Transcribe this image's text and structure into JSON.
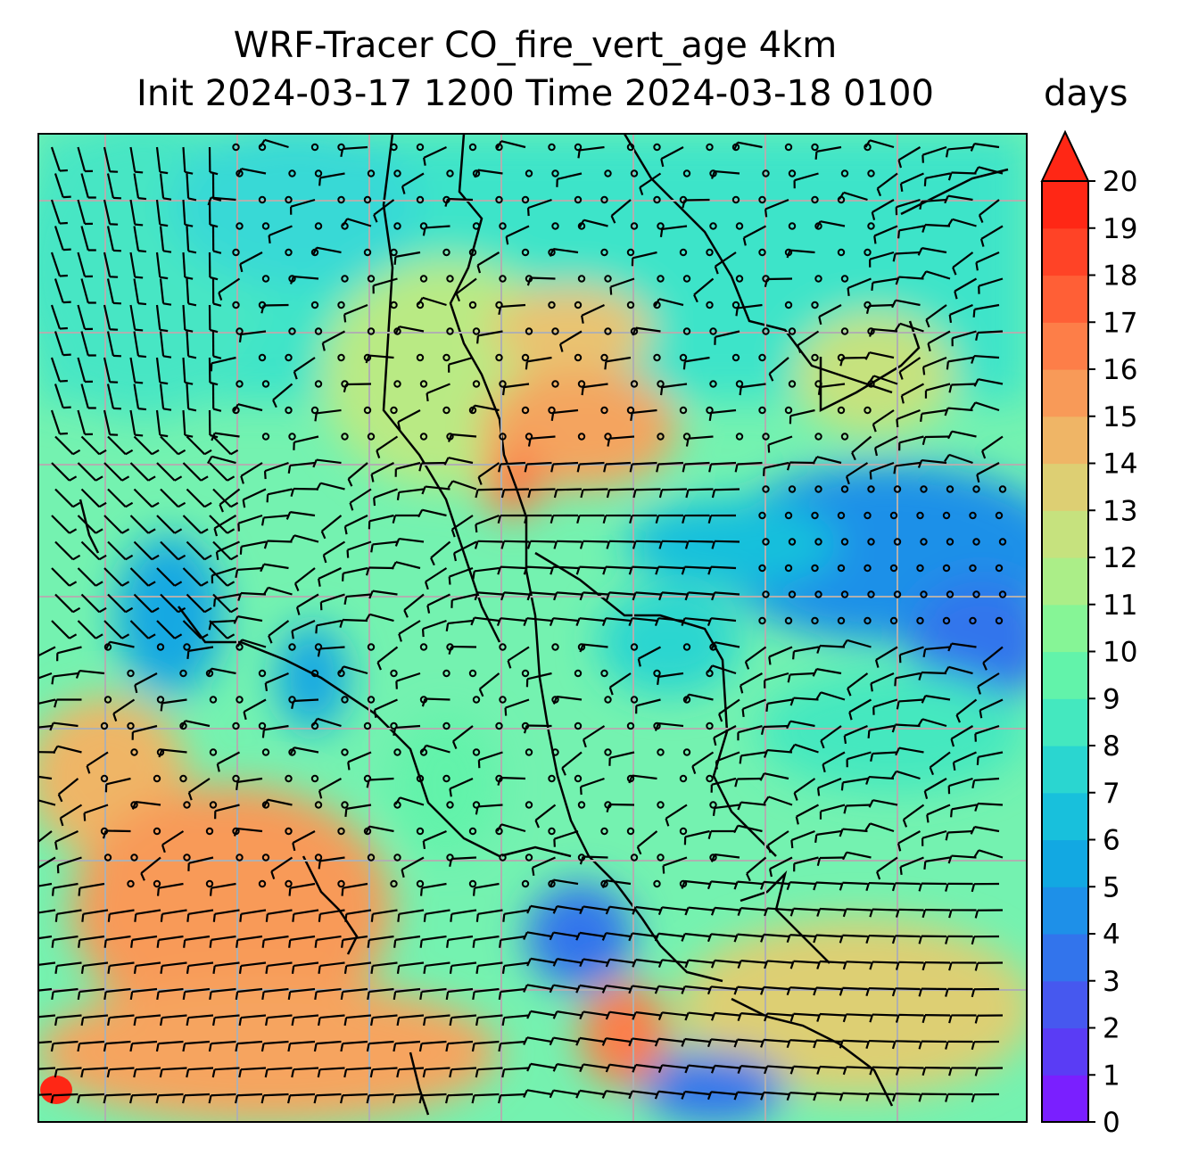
{
  "title_line1": "WRF-Tracer CO_fire_vert_age 4km",
  "title_line2": "Init 2024-03-17 1200 Time 2024-03-18 0100",
  "colorbar": {
    "units": "days",
    "min": 0,
    "max": 20,
    "step": 1,
    "extend": "max",
    "colors": [
      "#7a1fff",
      "#5a3cf5",
      "#4658ef",
      "#3274ec",
      "#1e90e8",
      "#12a8e2",
      "#18c0dc",
      "#2ad6d0",
      "#44e8bf",
      "#62f3aa",
      "#86f596",
      "#abee88",
      "#c6e27e",
      "#ddcf73",
      "#efb566",
      "#f89a58",
      "#fd7e48",
      "#ff5f36",
      "#ff4326",
      "#ff2715"
    ],
    "extend_color": "#ff2715",
    "tick_labels": [
      "0",
      "1",
      "2",
      "3",
      "4",
      "5",
      "6",
      "7",
      "8",
      "9",
      "10",
      "11",
      "12",
      "13",
      "14",
      "15",
      "16",
      "17",
      "18",
      "19",
      "20"
    ]
  },
  "map": {
    "gridlines": "on",
    "features": [
      "coastlines",
      "country borders",
      "wind barbs",
      "calm-wind circles"
    ]
  }
}
